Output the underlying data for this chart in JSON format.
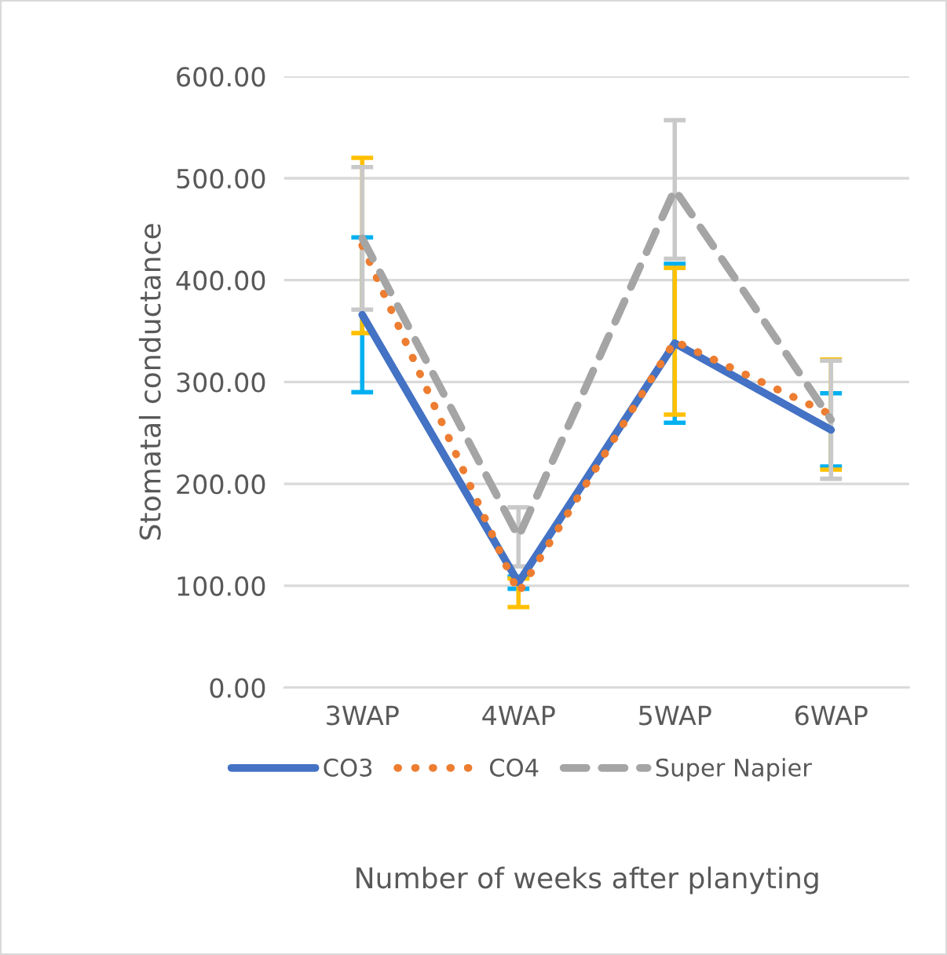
{
  "chart_data": {
    "type": "line",
    "xlabel": "Number of weeks after planyting",
    "ylabel": "Stomatal conductance",
    "categories": [
      "3WAP",
      "4WAP",
      "5WAP",
      "6WAP"
    ],
    "series": [
      {
        "name": "CO3",
        "color": "#4472c4",
        "line_style": "solid",
        "values": [
          366,
          103,
          338,
          253
        ],
        "errors": [
          76,
          6,
          78,
          36
        ]
      },
      {
        "name": "CO4",
        "color": "#ed7d31",
        "line_style": "dotted",
        "values": [
          434,
          93,
          340,
          268
        ],
        "errors": [
          86,
          14,
          72,
          54
        ]
      },
      {
        "name": "Super Napier",
        "color": "#a5a5a5",
        "line_style": "dashed",
        "values": [
          441,
          148,
          489,
          263
        ],
        "errors": [
          70,
          29,
          68,
          58
        ]
      }
    ],
    "ylim": [
      0,
      600
    ],
    "yticks": [
      {
        "value": 0,
        "label": "0.00"
      },
      {
        "value": 100,
        "label": "100.00"
      },
      {
        "value": 200,
        "label": "200.00"
      },
      {
        "value": 300,
        "label": "300.00"
      },
      {
        "value": 400,
        "label": "400.00"
      },
      {
        "value": 500,
        "label": "500.00"
      },
      {
        "value": 600,
        "label": "600.00"
      }
    ],
    "grid": "y",
    "legend": "bottom",
    "marker": "none"
  }
}
